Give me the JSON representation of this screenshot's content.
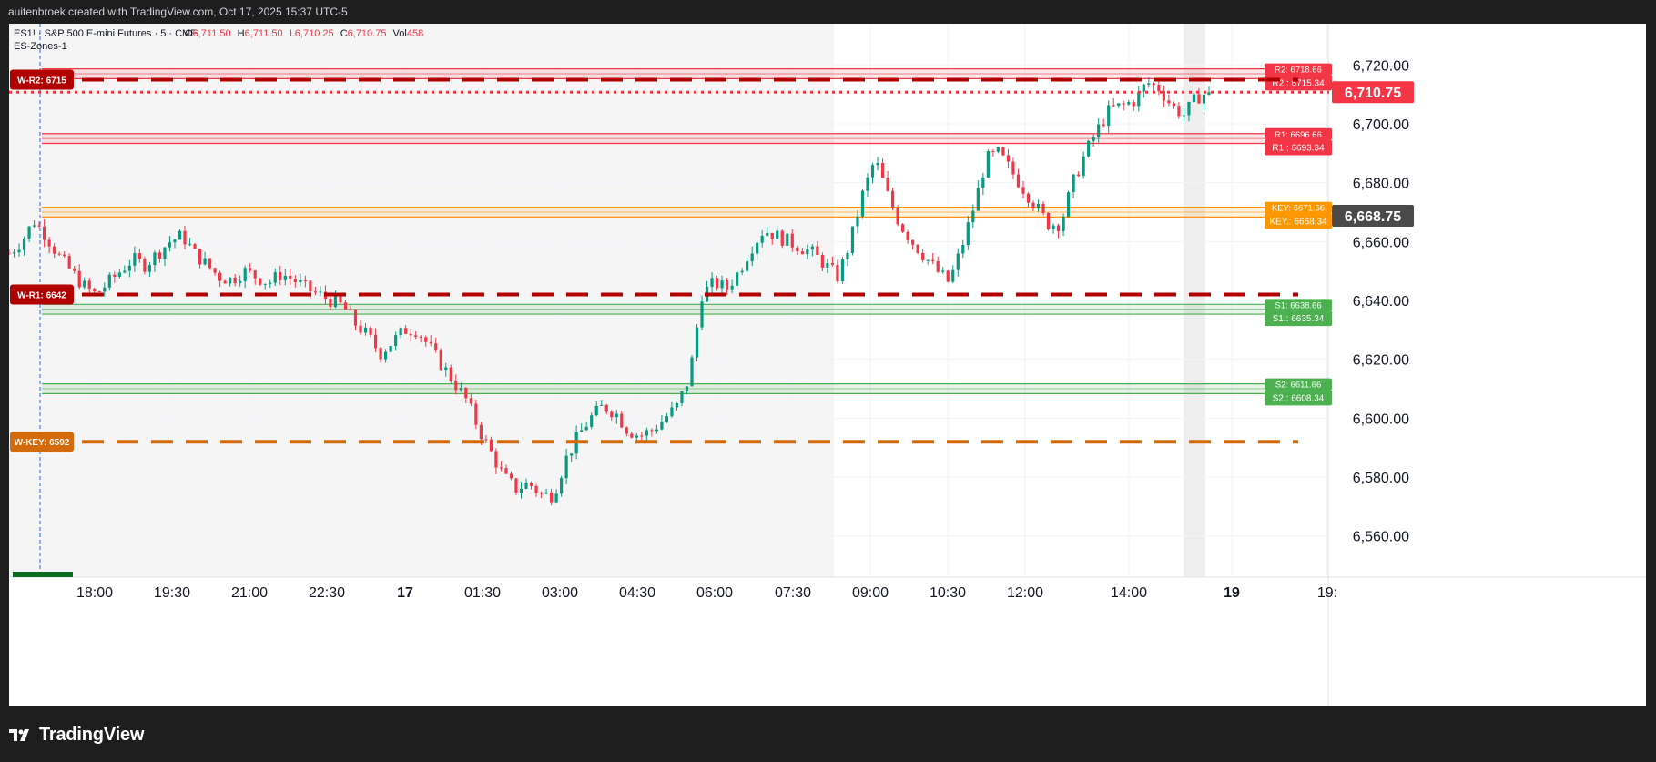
{
  "attribution": "auitenbroek created with TradingView.com, Oct 17, 2025 15:37 UTC-5",
  "brand": "TradingView",
  "legend": {
    "symbol": "ES1! · S&P 500 E-mini Futures · 5 · CME",
    "o_label": "O",
    "o": "6,711.50",
    "h_label": "H",
    "h": "6,711.50",
    "l_label": "L",
    "l": "6,710.25",
    "c_label": "C",
    "c": "6,710.75",
    "vol_label": "Vol",
    "vol": "458",
    "indicator": "ES-Zones-1"
  },
  "colors": {
    "up": "#089981",
    "down": "#f23645",
    "accent_red": "#f23645",
    "dark_red": "#b20000",
    "orange": "#ff9800",
    "dark_orange": "#d36a0c",
    "green_zone": "#4caf50",
    "dark_gray": "#4a4a4a"
  },
  "chart_data": {
    "type": "candlestick",
    "x_tick_labels": [
      "18:00",
      "19:30",
      "21:00",
      "22:30",
      "17",
      "01:30",
      "03:00",
      "04:30",
      "06:00",
      "07:30",
      "09:00",
      "10:30",
      "12:00",
      "14:00",
      "19",
      "19:"
    ],
    "y_ticks": [
      6560,
      6580,
      6600,
      6620,
      6640,
      6660,
      6680,
      6700,
      6720
    ],
    "y_tick_labels": [
      "6,560.00",
      "6,580.00",
      "6,600.00",
      "6,620.00",
      "6,640.00",
      "6,660.00",
      "6,680.00",
      "6,700.00",
      "6,720.00"
    ],
    "ylim": [
      6546,
      6734
    ],
    "last_price": 6710.75,
    "last_price_label": "6,710.75",
    "crosshair_price": 6668.75,
    "crosshair_price_label": "6,668.75",
    "weekly_levels": [
      {
        "label": "W-R2: 6715",
        "value": 6715,
        "color": "#b20000"
      },
      {
        "label": "W-R1: 6642",
        "value": 6642,
        "color": "#b20000"
      },
      {
        "label": "W-KEY: 6592",
        "value": 6592,
        "color": "#d36a0c"
      }
    ],
    "zones": [
      {
        "name": "R2",
        "top": 6718.66,
        "bottom": 6715.34,
        "label_top": "R2: 6718.66",
        "label_bottom": "R2.: 6715.34",
        "color": "#f23645"
      },
      {
        "name": "R1",
        "top": 6696.66,
        "bottom": 6693.34,
        "label_top": "R1: 6696.66",
        "label_bottom": "R1.: 6693.34",
        "color": "#f23645"
      },
      {
        "name": "KEY",
        "top": 6671.66,
        "bottom": 6668.34,
        "label_top": "KEY: 6671.66",
        "label_bottom": "KEY.: 6668.34",
        "color": "#ff9800"
      },
      {
        "name": "S1",
        "top": 6638.66,
        "bottom": 6635.34,
        "label_top": "S1: 6638.66",
        "label_bottom": "S1.: 6635.34",
        "color": "#4caf50"
      },
      {
        "name": "S2",
        "top": 6611.66,
        "bottom": 6608.34,
        "label_top": "S2: 6611.66",
        "label_bottom": "S2.: 6608.34",
        "color": "#4caf50"
      }
    ],
    "price_path": [
      6656,
      6660,
      6667,
      6662,
      6655,
      6650,
      6645,
      6642,
      6646,
      6650,
      6654,
      6652,
      6656,
      6660,
      6662,
      6656,
      6652,
      6648,
      6647,
      6650,
      6648,
      6646,
      6649,
      6647,
      6644,
      6642,
      6640,
      6638,
      6632,
      6628,
      6622,
      6626,
      6630,
      6630,
      6624,
      6618,
      6612,
      6606,
      6596,
      6588,
      6580,
      6576,
      6578,
      6574,
      6574,
      6586,
      6594,
      6600,
      6604,
      6602,
      6596,
      6594,
      6596,
      6600,
      6604,
      6614,
      6642,
      6646,
      6644,
      6650,
      6658,
      6664,
      6662,
      6660,
      6658,
      6656,
      6652,
      6648,
      6660,
      6676,
      6688,
      6676,
      6666,
      6660,
      6655,
      6650,
      6646,
      6658,
      6672,
      6688,
      6690,
      6684,
      6678,
      6672,
      6666,
      6666,
      6680,
      6690,
      6698,
      6705,
      6706,
      6708,
      6714,
      6712,
      6706,
      6703,
      6709,
      6710.75
    ]
  }
}
